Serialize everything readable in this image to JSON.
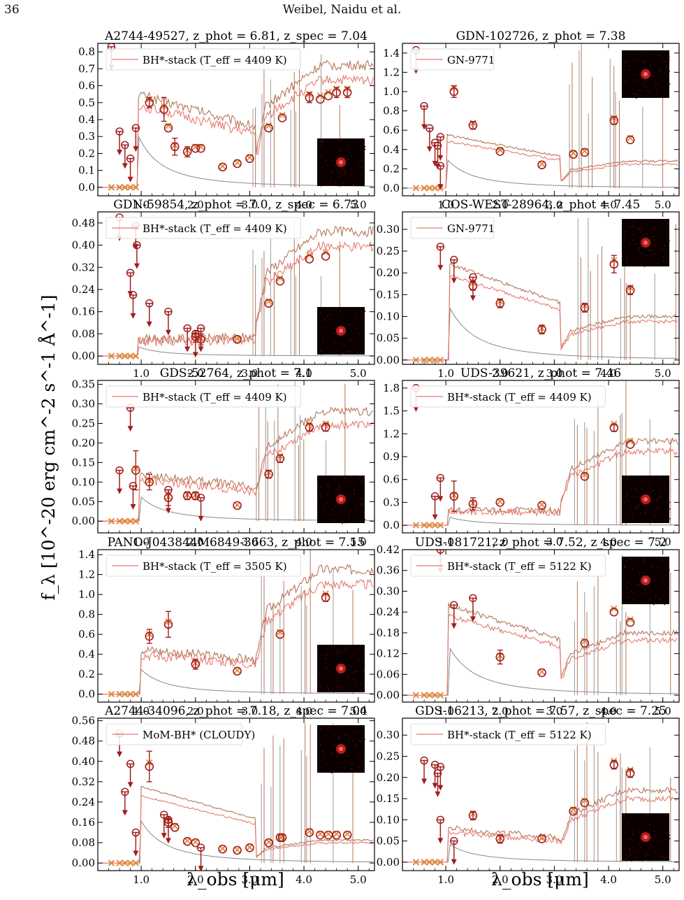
{
  "page": {
    "page_number": "36",
    "running_head": "Weibel, Naidu et al."
  },
  "axes_text": {
    "ylabel": "f_λ [10^-20 erg cm^-2 s^-1 Å^-1]",
    "xlabel": "λ_obs [μm]"
  },
  "colors": {
    "model_dark": "#b5775a",
    "model_light": "#e77a70",
    "continuum": "#888888",
    "lines": "#999999",
    "detections": "#a01e1e",
    "model_phot": "#e08a3a",
    "cutout_bg": "#0b0000",
    "cutout_src": "#ff2a2a"
  },
  "chart_data": [
    {
      "type": "line",
      "title": "A2744-49527, z_phot = 6.81, z_spec = 7.04",
      "legend": "BH*-stack (T_eff = 4409 K)",
      "legend_position": "top-left",
      "cutout_position": "bottom-right",
      "xlim": [
        0.2,
        5.3
      ],
      "ylim": [
        -0.05,
        0.85
      ],
      "yticks": [
        0.0,
        0.1,
        0.2,
        0.3,
        0.4,
        0.5,
        0.6,
        0.7,
        0.8
      ],
      "xticks": [
        1.0,
        2.0,
        3.0,
        4.0,
        5.0
      ],
      "break_um": 0.95,
      "detections": [
        [
          1.15,
          0.5,
          0.03
        ],
        [
          1.42,
          0.46,
          0.07
        ],
        [
          1.5,
          0.35,
          0.02
        ],
        [
          1.62,
          0.24,
          0.05
        ],
        [
          1.85,
          0.21,
          0.03
        ],
        [
          2.0,
          0.23,
          0.02
        ],
        [
          2.1,
          0.23,
          0.02
        ],
        [
          2.5,
          0.12,
          0.02
        ],
        [
          2.77,
          0.14,
          0.02
        ],
        [
          3.0,
          0.17,
          0.02
        ],
        [
          3.35,
          0.35,
          0.02
        ],
        [
          3.6,
          0.41,
          0.02
        ],
        [
          4.1,
          0.53,
          0.03
        ],
        [
          4.3,
          0.52,
          0.02
        ],
        [
          4.45,
          0.54,
          0.02
        ],
        [
          4.6,
          0.56,
          0.03
        ],
        [
          4.8,
          0.56,
          0.03
        ]
      ],
      "upper_limits": [
        [
          0.45,
          0.83
        ],
        [
          0.6,
          0.33
        ],
        [
          0.7,
          0.25
        ],
        [
          0.8,
          0.17
        ],
        [
          0.9,
          0.35
        ]
      ],
      "model_start": 0.55,
      "model_end": 0.72
    },
    {
      "type": "line",
      "title": "GDN-102726, z_phot = 7.38",
      "legend": "GN-9771",
      "legend_position": "top-left",
      "cutout_position": "top-right",
      "xlim": [
        0.2,
        5.3
      ],
      "ylim": [
        -0.08,
        1.5
      ],
      "yticks": [
        0.0,
        0.2,
        0.4,
        0.6,
        0.8,
        1.0,
        1.2,
        1.4
      ],
      "xticks": [
        1.0,
        2.0,
        3.0,
        4.0,
        5.0
      ],
      "break_um": 1.02,
      "detections": [
        [
          1.15,
          1.0,
          0.06
        ],
        [
          1.5,
          0.65,
          0.04
        ],
        [
          2.0,
          0.38,
          0.03
        ],
        [
          2.77,
          0.24,
          0.02
        ],
        [
          3.35,
          0.35,
          0.02
        ],
        [
          3.56,
          0.37,
          0.02
        ],
        [
          4.1,
          0.7,
          0.04
        ],
        [
          4.4,
          0.5,
          0.03
        ]
      ],
      "upper_limits": [
        [
          0.45,
          1.43
        ],
        [
          0.6,
          0.85
        ],
        [
          0.7,
          0.62
        ],
        [
          0.8,
          0.47
        ],
        [
          0.85,
          0.44
        ],
        [
          0.9,
          0.53
        ],
        [
          0.9,
          0.23
        ]
      ],
      "model_start": 0.55,
      "model_end": 0.28
    },
    {
      "type": "line",
      "title": "GDN-59854, z_phot = 7.0, z_spec = 6.73",
      "legend": "BH*-stack (T_eff = 4409 K)",
      "legend_position": "top-left",
      "cutout_position": "bottom-right",
      "xlim": [
        0.2,
        5.3
      ],
      "ylim": [
        -0.03,
        0.52
      ],
      "yticks": [
        0.0,
        0.08,
        0.16,
        0.24,
        0.32,
        0.4,
        0.48
      ],
      "xticks": [
        1.0,
        2.0,
        3.0,
        4.0,
        5.0
      ],
      "break_um": 0.95,
      "detections": [
        [
          2.0,
          0.07,
          0.02
        ],
        [
          2.1,
          0.06,
          0.02
        ],
        [
          2.77,
          0.06,
          0.01
        ],
        [
          3.35,
          0.19,
          0.01
        ],
        [
          3.56,
          0.27,
          0.01
        ],
        [
          4.1,
          0.35,
          0.01
        ],
        [
          4.4,
          0.36,
          0.01
        ]
      ],
      "upper_limits": [
        [
          0.6,
          0.5
        ],
        [
          0.8,
          0.3
        ],
        [
          0.85,
          0.22
        ],
        [
          0.9,
          0.47
        ],
        [
          0.92,
          0.4
        ],
        [
          1.15,
          0.19
        ],
        [
          1.5,
          0.16
        ],
        [
          1.85,
          0.1
        ],
        [
          2.0,
          0.08
        ],
        [
          2.1,
          0.1
        ]
      ],
      "model_start": 0.06,
      "model_end": 0.45
    },
    {
      "type": "line",
      "title": "COS-WEST-28964, z_phot = 7.45",
      "legend": "GN-9771",
      "legend_position": "top-left",
      "cutout_position": "top-right",
      "xlim": [
        0.2,
        5.3
      ],
      "ylim": [
        -0.01,
        0.34
      ],
      "yticks": [
        0.0,
        0.05,
        0.1,
        0.15,
        0.2,
        0.25,
        0.3
      ],
      "xticks": [
        1.0,
        2.0,
        3.0,
        4.0,
        5.0
      ],
      "break_um": 1.07,
      "detections": [
        [
          1.5,
          0.17,
          0.01
        ],
        [
          2.0,
          0.13,
          0.01
        ],
        [
          2.77,
          0.07,
          0.01
        ],
        [
          3.56,
          0.12,
          0.01
        ],
        [
          4.1,
          0.22,
          0.02
        ],
        [
          4.4,
          0.16,
          0.01
        ]
      ],
      "upper_limits": [
        [
          0.9,
          0.26
        ],
        [
          1.15,
          0.23
        ],
        [
          1.5,
          0.19
        ]
      ],
      "model_start": 0.22,
      "model_end": 0.1
    },
    {
      "type": "line",
      "title": "GDS-52764, z_phot = 7.1",
      "legend": "BH*-stack (T_eff = 4409 K)",
      "legend_position": "top-left",
      "cutout_position": "bottom-right",
      "xlim": [
        0.2,
        5.3
      ],
      "ylim": [
        -0.03,
        0.36
      ],
      "yticks": [
        0.0,
        0.05,
        0.1,
        0.15,
        0.2,
        0.25,
        0.3,
        0.35
      ],
      "xticks": [
        1.0,
        2.0,
        3.0,
        4.0,
        5.0
      ],
      "break_um": 0.97,
      "detections": [
        [
          0.9,
          0.13,
          0.05
        ],
        [
          1.15,
          0.1,
          0.02
        ],
        [
          1.5,
          0.06,
          0.02
        ],
        [
          1.85,
          0.065,
          0.01
        ],
        [
          2.0,
          0.065,
          0.01
        ],
        [
          2.77,
          0.04,
          0.005
        ],
        [
          3.35,
          0.12,
          0.01
        ],
        [
          3.56,
          0.16,
          0.01
        ],
        [
          4.1,
          0.24,
          0.01
        ],
        [
          4.4,
          0.24,
          0.01
        ]
      ],
      "upper_limits": [
        [
          0.6,
          0.13
        ],
        [
          0.8,
          0.29
        ],
        [
          0.85,
          0.09
        ],
        [
          1.5,
          0.08
        ],
        [
          2.1,
          0.06
        ]
      ],
      "model_start": 0.12,
      "model_end": 0.28
    },
    {
      "type": "line",
      "title": "UDS-39621, z_phot = 7.46",
      "legend": "BH*-stack (T_eff = 4409 K)",
      "legend_position": "top-left",
      "cutout_position": "bottom-right",
      "xlim": [
        0.2,
        5.3
      ],
      "ylim": [
        -0.1,
        1.9
      ],
      "yticks": [
        0.0,
        0.3,
        0.6,
        0.9,
        1.2,
        1.5,
        1.8
      ],
      "xticks": [
        1.0,
        2.0,
        3.0,
        4.0,
        5.0
      ],
      "break_um": 1.05,
      "detections": [
        [
          1.15,
          0.38,
          0.2
        ],
        [
          1.5,
          0.28,
          0.08
        ],
        [
          2.0,
          0.3,
          0.03
        ],
        [
          2.77,
          0.26,
          0.02
        ],
        [
          3.56,
          0.64,
          0.03
        ],
        [
          4.1,
          1.28,
          0.05
        ],
        [
          4.4,
          1.06,
          0.04
        ]
      ],
      "upper_limits": [
        [
          0.45,
          1.8
        ],
        [
          0.8,
          0.38
        ],
        [
          0.9,
          0.62
        ]
      ],
      "model_start": 0.2,
      "model_end": 1.1
    },
    {
      "type": "line",
      "title": "PANO-J043844M6849-3663, z_phot = 7.15",
      "legend": "BH*-stack (T_eff = 3505 K)",
      "legend_position": "top-left",
      "cutout_position": "bottom-right",
      "xlim": [
        0.2,
        5.3
      ],
      "ylim": [
        -0.08,
        1.45
      ],
      "yticks": [
        0.0,
        0.2,
        0.4,
        0.6,
        0.8,
        1.0,
        1.2,
        1.4
      ],
      "xticks": [
        1.0,
        2.0,
        3.0,
        4.0,
        5.0
      ],
      "break_um": 1.0,
      "detections": [
        [
          1.15,
          0.58,
          0.07
        ],
        [
          1.5,
          0.7,
          0.13
        ],
        [
          2.0,
          0.3,
          0.05
        ],
        [
          2.77,
          0.23,
          0.02
        ],
        [
          3.56,
          0.6,
          0.03
        ],
        [
          4.4,
          0.97,
          0.04
        ]
      ],
      "upper_limits": [],
      "model_start": 0.45,
      "model_end": 1.25
    },
    {
      "type": "line",
      "title": "UDS-181721, z_phot = 7.52, z_spec = 7.2",
      "legend": "BH*-stack (T_eff = 5122 K)",
      "legend_position": "top-left",
      "cutout_position": "top-right",
      "xlim": [
        0.2,
        5.3
      ],
      "ylim": [
        -0.02,
        0.42
      ],
      "yticks": [
        0.0,
        0.06,
        0.12,
        0.18,
        0.24,
        0.3,
        0.36,
        0.42
      ],
      "xticks": [
        1.0,
        2.0,
        3.0,
        4.0,
        5.0
      ],
      "break_um": 1.05,
      "detections": [
        [
          2.0,
          0.11,
          0.02
        ],
        [
          2.77,
          0.065,
          0.01
        ],
        [
          3.56,
          0.15,
          0.01
        ],
        [
          4.1,
          0.24,
          0.01
        ],
        [
          4.4,
          0.21,
          0.01
        ]
      ],
      "upper_limits": [
        [
          0.9,
          0.42
        ],
        [
          1.15,
          0.26
        ],
        [
          1.5,
          0.28
        ]
      ],
      "model_start": 0.26,
      "model_end": 0.18
    },
    {
      "type": "line",
      "title": "A2744-34096, z_phot = 7.18, z_spec = 7.04",
      "legend": "MoM-BH* (CLOUDY)",
      "legend_position": "top-left",
      "cutout_position": "top-right",
      "xlim": [
        0.2,
        5.3
      ],
      "ylim": [
        -0.03,
        0.57
      ],
      "yticks": [
        0.0,
        0.08,
        0.16,
        0.24,
        0.32,
        0.4,
        0.48,
        0.56
      ],
      "xticks": [
        1.0,
        2.0,
        3.0,
        4.0,
        5.0
      ],
      "break_um": 1.0,
      "detections": [
        [
          1.15,
          0.38,
          0.06
        ],
        [
          1.5,
          0.16,
          0.02
        ],
        [
          1.62,
          0.14,
          0.01
        ],
        [
          1.85,
          0.085,
          0.01
        ],
        [
          2.0,
          0.08,
          0.01
        ],
        [
          2.5,
          0.055,
          0.01
        ],
        [
          2.77,
          0.05,
          0.01
        ],
        [
          3.0,
          0.06,
          0.01
        ],
        [
          3.35,
          0.08,
          0.01
        ],
        [
          3.56,
          0.1,
          0.01
        ],
        [
          3.6,
          0.1,
          0.01
        ],
        [
          4.1,
          0.12,
          0.01
        ],
        [
          4.3,
          0.11,
          0.01
        ],
        [
          4.45,
          0.11,
          0.01
        ],
        [
          4.6,
          0.11,
          0.01
        ],
        [
          4.8,
          0.11,
          0.01
        ]
      ],
      "upper_limits": [
        [
          0.6,
          0.51
        ],
        [
          0.7,
          0.28
        ],
        [
          0.8,
          0.39
        ],
        [
          0.9,
          0.12
        ],
        [
          1.42,
          0.19
        ],
        [
          1.5,
          0.17
        ],
        [
          2.1,
          0.06
        ]
      ],
      "model_start": 0.3,
      "model_end": 0.09
    },
    {
      "type": "line",
      "title": "GDS-16213, z_phot = 7.57, z_spec = 7.25",
      "legend": "BH*-stack (T_eff = 5122 K)",
      "legend_position": "top-left",
      "cutout_position": "bottom-right",
      "xlim": [
        0.2,
        5.3
      ],
      "ylim": [
        -0.02,
        0.34
      ],
      "yticks": [
        0.0,
        0.05,
        0.1,
        0.15,
        0.2,
        0.25,
        0.3
      ],
      "xticks": [
        1.0,
        2.0,
        3.0,
        4.0,
        5.0
      ],
      "break_um": 1.05,
      "detections": [
        [
          1.5,
          0.11,
          0.01
        ],
        [
          2.0,
          0.055,
          0.01
        ],
        [
          2.77,
          0.055,
          0.005
        ],
        [
          3.35,
          0.12,
          0.005
        ],
        [
          3.56,
          0.14,
          0.005
        ],
        [
          4.1,
          0.23,
          0.01
        ],
        [
          4.4,
          0.21,
          0.01
        ]
      ],
      "upper_limits": [
        [
          0.6,
          0.24
        ],
        [
          0.8,
          0.23
        ],
        [
          0.85,
          0.21
        ],
        [
          0.9,
          0.225
        ],
        [
          0.9,
          0.1
        ],
        [
          1.15,
          0.05
        ]
      ],
      "model_start": 0.08,
      "model_end": 0.17
    }
  ]
}
